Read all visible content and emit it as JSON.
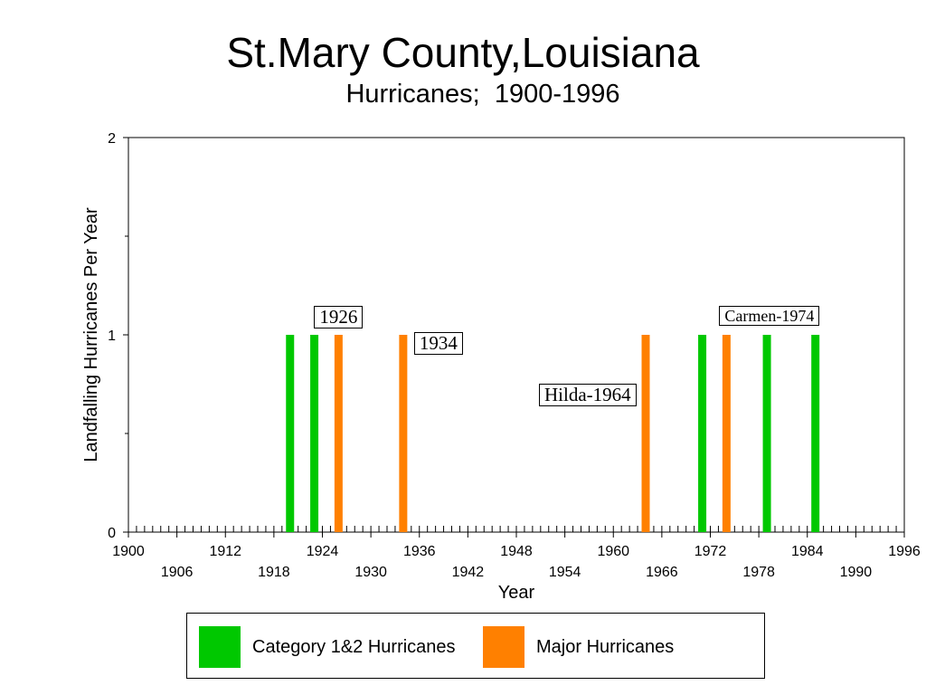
{
  "chart_data": {
    "type": "bar",
    "title": "St.Mary County,Louisiana",
    "subtitle": "Hurricanes;  1900-1996",
    "xlabel": "Year",
    "ylabel": "Landfalling Hurricanes Per Year",
    "xlim": [
      1900,
      1996
    ],
    "ylim": [
      0,
      2
    ],
    "yticks": [
      "0",
      "1",
      "2"
    ],
    "xticks_upper": [
      "1900",
      "1912",
      "1924",
      "1936",
      "1948",
      "1960",
      "1972",
      "1984",
      "1996"
    ],
    "xticks_lower": [
      "1906",
      "1918",
      "1930",
      "1942",
      "1954",
      "1966",
      "1978",
      "1990"
    ],
    "grid": false,
    "legend_position": "bottom",
    "series": [
      {
        "name": "Category 1&2 Hurricanes",
        "color": "#00c800",
        "x": [
          1920,
          1923,
          1971,
          1979,
          1985
        ],
        "values": [
          1,
          1,
          1,
          1,
          1
        ]
      },
      {
        "name": "Major Hurricanes",
        "color": "#ff8000",
        "x": [
          1926,
          1934,
          1964,
          1974
        ],
        "values": [
          1,
          1,
          1,
          1
        ]
      }
    ],
    "annotations": [
      {
        "text": "1926",
        "year": 1926
      },
      {
        "text": "1934",
        "year": 1934
      },
      {
        "text": "Hilda-1964",
        "year": 1964
      },
      {
        "text": "Carmen-1974",
        "year": 1974
      }
    ]
  }
}
